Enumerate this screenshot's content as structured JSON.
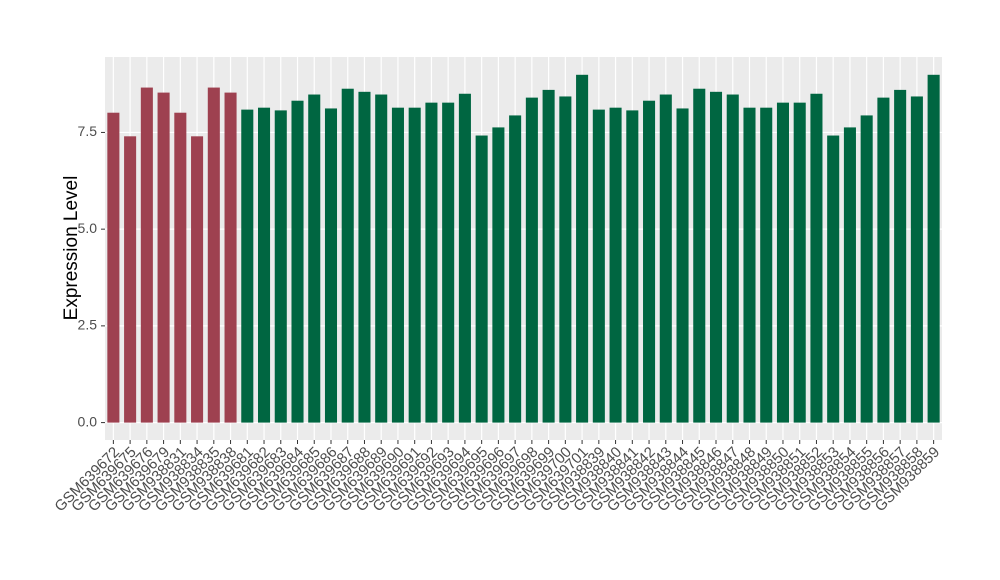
{
  "chart_data": {
    "type": "bar",
    "y_label": "Expression Level",
    "categories": [
      "GSM639672",
      "GSM639675",
      "GSM639676",
      "GSM639679",
      "GSM938831",
      "GSM938834",
      "GSM938835",
      "GSM938838",
      "GSM639681",
      "GSM639682",
      "GSM639683",
      "GSM639684",
      "GSM639685",
      "GSM639686",
      "GSM639687",
      "GSM639688",
      "GSM639689",
      "GSM639690",
      "GSM639691",
      "GSM639692",
      "GSM639693",
      "GSM639694",
      "GSM639695",
      "GSM639696",
      "GSM639697",
      "GSM639698",
      "GSM639699",
      "GSM639700",
      "GSM639701",
      "GSM938839",
      "GSM938840",
      "GSM938841",
      "GSM938842",
      "GSM938843",
      "GSM938844",
      "GSM938845",
      "GSM938846",
      "GSM938847",
      "GSM938848",
      "GSM938849",
      "GSM938850",
      "GSM938851",
      "GSM938852",
      "GSM938853",
      "GSM938854",
      "GSM938855",
      "GSM938856",
      "GSM938857",
      "GSM938858",
      "GSM938859"
    ],
    "values": [
      8.01,
      7.4,
      8.66,
      8.53,
      8.01,
      7.4,
      8.66,
      8.53,
      8.09,
      8.14,
      8.07,
      8.32,
      8.48,
      8.12,
      8.63,
      8.55,
      8.48,
      8.14,
      8.14,
      8.27,
      8.27,
      8.5,
      7.42,
      7.63,
      7.94,
      8.4,
      8.6,
      8.43,
      8.99,
      8.09,
      8.14,
      8.07,
      8.32,
      8.48,
      8.12,
      8.63,
      8.55,
      8.48,
      8.14,
      8.14,
      8.27,
      8.27,
      8.5,
      7.42,
      7.63,
      7.94,
      8.4,
      8.6,
      8.43,
      8.99
    ],
    "colors": [
      "#9e4150",
      "#9e4150",
      "#9e4150",
      "#9e4150",
      "#9e4150",
      "#9e4150",
      "#9e4150",
      "#9e4150",
      "#006641",
      "#006641",
      "#006641",
      "#006641",
      "#006641",
      "#006641",
      "#006641",
      "#006641",
      "#006641",
      "#006641",
      "#006641",
      "#006641",
      "#006641",
      "#006641",
      "#006641",
      "#006641",
      "#006641",
      "#006641",
      "#006641",
      "#006641",
      "#006641",
      "#006641",
      "#006641",
      "#006641",
      "#006641",
      "#006641",
      "#006641",
      "#006641",
      "#006641",
      "#006641",
      "#006641",
      "#006641",
      "#006641",
      "#006641",
      "#006641",
      "#006641",
      "#006641",
      "#006641",
      "#006641",
      "#006641",
      "#006641",
      "#006641"
    ],
    "ylim": [
      -0.45,
      9.45
    ],
    "yticks": [
      {
        "value": 0,
        "label": "0.0"
      },
      {
        "value": 2.5,
        "label": "2.5"
      },
      {
        "value": 5,
        "label": "5.0"
      },
      {
        "value": 7.5,
        "label": "7.5"
      }
    ],
    "grid": true
  }
}
